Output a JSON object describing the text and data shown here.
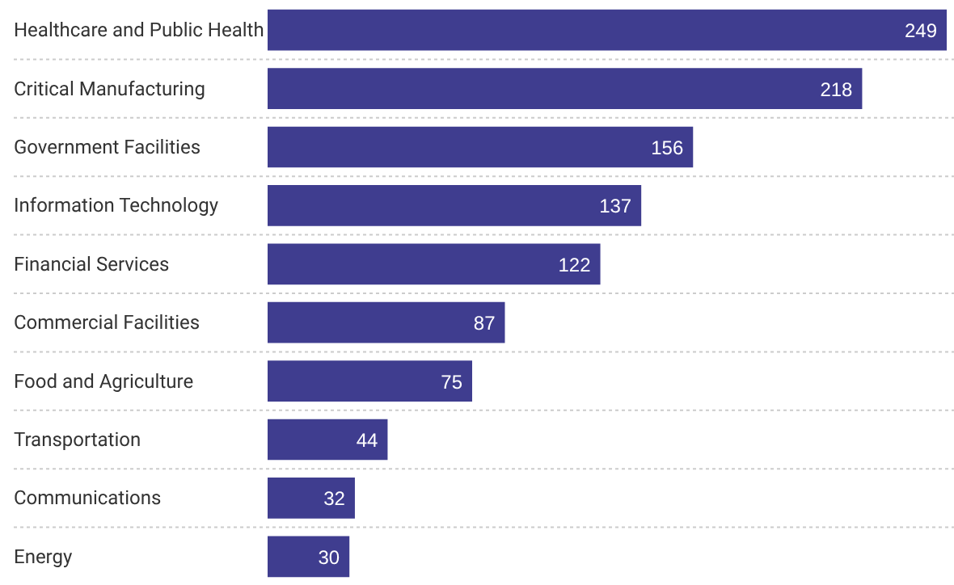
{
  "chart_data": {
    "type": "bar",
    "orientation": "horizontal",
    "categories": [
      "Healthcare and Public Health",
      "Critical Manufacturing",
      "Government Facilities",
      "Information Technology",
      "Financial Services",
      "Commercial Facilities",
      "Food and Agriculture",
      "Transportation",
      "Communications",
      "Energy"
    ],
    "values": [
      249,
      218,
      156,
      137,
      122,
      87,
      75,
      44,
      32,
      30
    ],
    "color": "#3f3d8f",
    "data_labels": true,
    "grid": "y"
  }
}
